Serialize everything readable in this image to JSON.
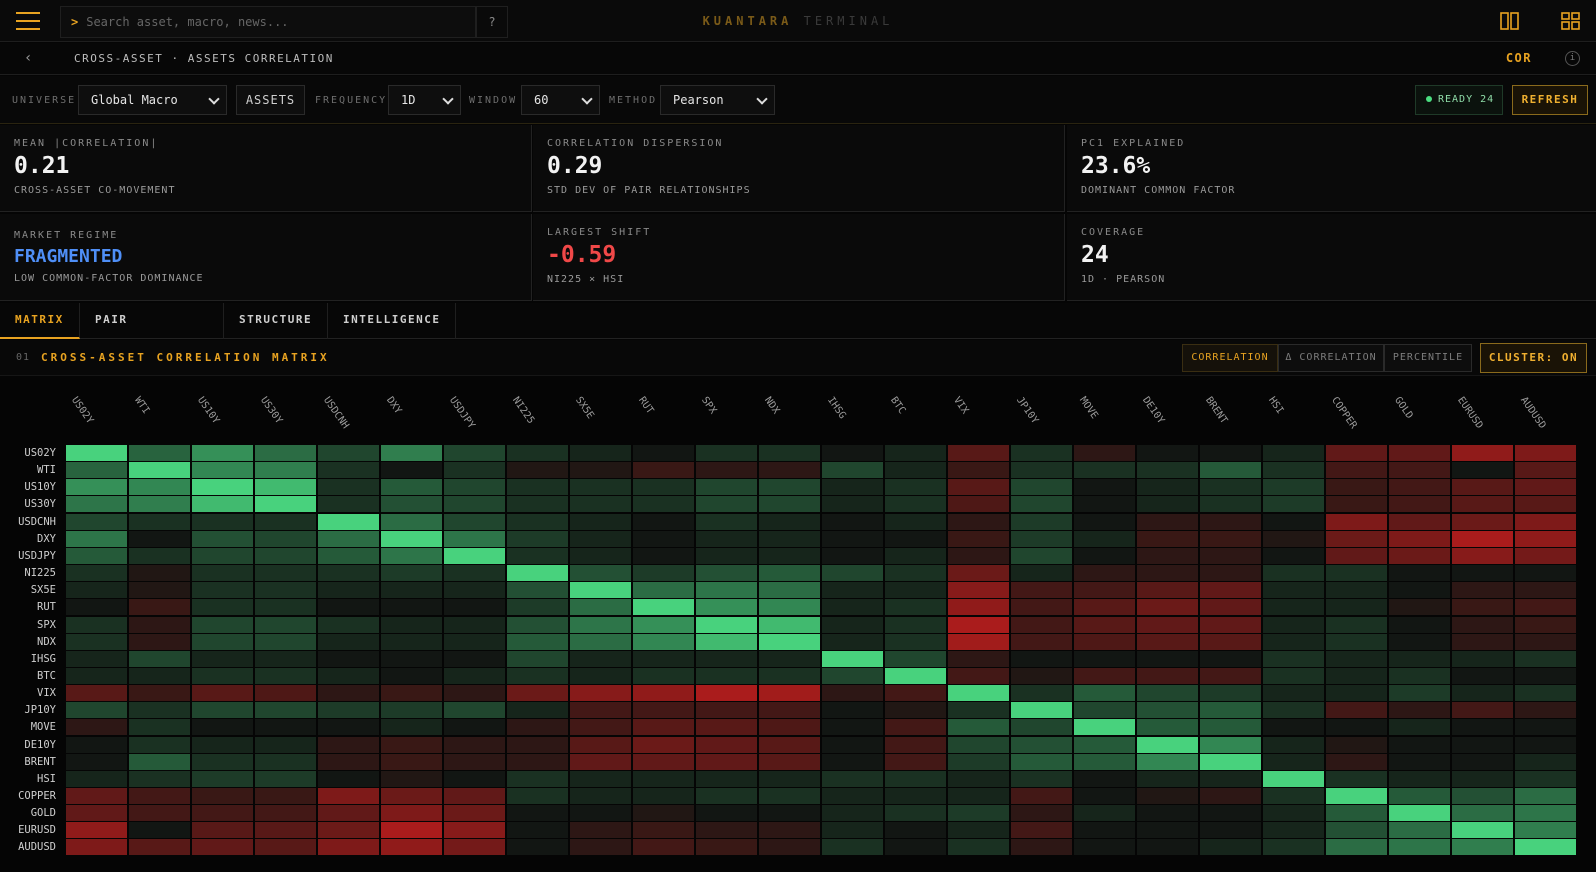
{
  "app": {
    "brand_main": "KUANTARA",
    "brand_sub": "TERMINAL",
    "search_placeholder": "Search asset, macro, news...",
    "search_prompt": ">",
    "help": "?"
  },
  "subbar": {
    "back": "‹",
    "breadcrumb": "CROSS-ASSET · ASSETS CORRELATION",
    "code": "COR",
    "info": "i"
  },
  "controls": {
    "universe_label": "UNIVERSE",
    "universe_value": "Global Macro",
    "assets_button": "ASSETS",
    "frequency_label": "FREQUENCY",
    "frequency_value": "1D",
    "window_label": "WINDOW",
    "window_value": "60",
    "method_label": "METHOD",
    "method_value": "Pearson",
    "ready": "READY 24",
    "refresh": "REFRESH"
  },
  "stats": [
    {
      "key": "MEAN |CORRELATION|",
      "value": "0.21",
      "sub": "CROSS-ASSET CO-MOVEMENT",
      "color": "#f2f2f2"
    },
    {
      "key": "CORRELATION DISPERSION",
      "value": "0.29",
      "sub": "STD DEV OF PAIR RELATIONSHIPS",
      "color": "#f2f2f2"
    },
    {
      "key": "PC1 EXPLAINED",
      "value": "23.6%",
      "sub": "DOMINANT COMMON FACTOR",
      "color": "#f2f2f2"
    },
    {
      "key": "MARKET REGIME",
      "value": "FRAGMENTED",
      "sub": "LOW COMMON-FACTOR DOMINANCE",
      "color": "#4f8ff7"
    },
    {
      "key": "LARGEST SHIFT",
      "value": "-0.59",
      "sub": "NI225 × HSI",
      "color": "#f04848"
    },
    {
      "key": "COVERAGE",
      "value": "24",
      "sub": "1D · PEARSON",
      "color": "#f2f2f2"
    }
  ],
  "tabs": [
    "MATRIX",
    "PAIR ANALYTICS",
    "STRUCTURE",
    "INTELLIGENCE"
  ],
  "matrix_header": {
    "num": "01",
    "title": "CROSS-ASSET CORRELATION MATRIX",
    "modes": [
      "CORRELATION",
      "Δ CORRELATION",
      "PERCENTILE"
    ],
    "cluster": "CLUSTER: ON"
  },
  "colors": {
    "accent": "#e8a321",
    "positive": "#4ade80",
    "negative": "#d21e1e"
  },
  "chart_data": {
    "type": "heatmap",
    "assets": [
      "US02Y",
      "WTI",
      "US10Y",
      "US30Y",
      "USDCNH",
      "DXY",
      "USDJPY",
      "NI225",
      "SX5E",
      "RUT",
      "SPX",
      "NDX",
      "IHSG",
      "BTC",
      "VIX",
      "JP10Y",
      "MOVE",
      "DE10Y",
      "BRENT",
      "HSI",
      "COPPER",
      "GOLD",
      "EURUSD",
      "AUDUSD"
    ],
    "values": [
      [
        1.0,
        0.35,
        0.6,
        0.4,
        0.2,
        0.5,
        0.2,
        0.1,
        0.05,
        0.0,
        0.1,
        0.1,
        0.0,
        0.05,
        -0.3,
        0.1,
        -0.1,
        0.0,
        0.0,
        0.05,
        -0.35,
        -0.35,
        -0.6,
        -0.5
      ],
      [
        0.35,
        1.0,
        0.55,
        0.5,
        0.1,
        0.0,
        0.1,
        -0.05,
        -0.05,
        -0.15,
        -0.1,
        -0.1,
        0.2,
        0.05,
        -0.15,
        0.1,
        0.1,
        0.1,
        0.3,
        0.1,
        -0.2,
        -0.2,
        0.0,
        -0.3
      ],
      [
        0.6,
        0.55,
        1.0,
        0.85,
        0.1,
        0.3,
        0.2,
        0.1,
        0.1,
        0.1,
        0.2,
        0.2,
        0.05,
        0.1,
        -0.3,
        0.2,
        0.0,
        0.05,
        0.1,
        0.15,
        -0.15,
        -0.2,
        -0.3,
        -0.35
      ],
      [
        0.45,
        0.5,
        0.85,
        1.0,
        0.1,
        0.25,
        0.2,
        0.1,
        0.1,
        0.1,
        0.2,
        0.2,
        0.05,
        0.1,
        -0.25,
        0.2,
        0.0,
        0.05,
        0.1,
        0.15,
        -0.15,
        -0.2,
        -0.3,
        -0.3
      ],
      [
        0.2,
        0.1,
        0.1,
        0.1,
        1.0,
        0.4,
        0.2,
        0.1,
        0.05,
        0.0,
        0.1,
        0.05,
        0.0,
        0.05,
        -0.1,
        0.15,
        0.0,
        -0.1,
        -0.1,
        0.0,
        -0.5,
        -0.35,
        -0.4,
        -0.5
      ],
      [
        0.45,
        0.0,
        0.25,
        0.2,
        0.4,
        1.0,
        0.45,
        0.15,
        0.05,
        0.0,
        0.05,
        0.05,
        0.0,
        0.0,
        -0.15,
        0.15,
        0.05,
        -0.15,
        -0.15,
        -0.05,
        -0.4,
        -0.5,
        -0.75,
        -0.6
      ],
      [
        0.3,
        0.1,
        0.2,
        0.2,
        0.3,
        0.45,
        1.0,
        0.1,
        0.05,
        0.0,
        0.05,
        0.05,
        0.0,
        0.05,
        -0.1,
        0.2,
        0.0,
        -0.1,
        -0.1,
        0.0,
        -0.35,
        -0.4,
        -0.55,
        -0.45
      ],
      [
        0.1,
        -0.05,
        0.1,
        0.1,
        0.1,
        0.15,
        0.1,
        1.0,
        0.25,
        0.15,
        0.25,
        0.3,
        0.2,
        0.1,
        -0.4,
        0.05,
        -0.1,
        -0.1,
        -0.1,
        0.1,
        0.1,
        0.0,
        0.0,
        0.0
      ],
      [
        0.05,
        -0.05,
        0.1,
        0.1,
        0.05,
        0.05,
        0.05,
        0.25,
        1.0,
        0.4,
        0.45,
        0.4,
        0.05,
        0.05,
        -0.55,
        -0.2,
        -0.2,
        -0.3,
        -0.35,
        0.05,
        0.05,
        0.0,
        -0.1,
        -0.1
      ],
      [
        0.0,
        -0.15,
        0.1,
        0.1,
        0.0,
        0.0,
        0.0,
        0.15,
        0.4,
        1.0,
        0.6,
        0.55,
        0.05,
        0.1,
        -0.6,
        -0.2,
        -0.3,
        -0.4,
        -0.35,
        0.05,
        0.05,
        -0.05,
        -0.15,
        -0.2
      ],
      [
        0.1,
        -0.1,
        0.2,
        0.2,
        0.1,
        0.05,
        0.05,
        0.25,
        0.45,
        0.6,
        1.0,
        0.85,
        0.05,
        0.1,
        -0.75,
        -0.2,
        -0.3,
        -0.35,
        -0.35,
        0.05,
        0.1,
        0.0,
        -0.1,
        -0.15
      ],
      [
        0.1,
        -0.1,
        0.2,
        0.2,
        0.05,
        0.05,
        0.05,
        0.3,
        0.4,
        0.55,
        0.85,
        1.0,
        0.05,
        0.1,
        -0.7,
        -0.2,
        -0.25,
        -0.3,
        -0.3,
        0.05,
        0.1,
        0.0,
        -0.1,
        -0.1
      ],
      [
        0.05,
        0.2,
        0.05,
        0.05,
        0.0,
        0.0,
        0.0,
        0.2,
        0.05,
        0.05,
        0.05,
        0.05,
        1.0,
        0.2,
        -0.1,
        0.0,
        0.0,
        0.0,
        0.0,
        0.1,
        0.05,
        0.05,
        0.05,
        0.1
      ],
      [
        0.05,
        0.05,
        0.1,
        0.1,
        0.05,
        0.0,
        0.05,
        0.1,
        0.05,
        0.1,
        0.1,
        0.1,
        0.2,
        1.0,
        -0.2,
        -0.05,
        -0.2,
        -0.2,
        -0.2,
        0.1,
        0.05,
        0.1,
        0.0,
        0.0
      ],
      [
        -0.3,
        -0.15,
        -0.3,
        -0.25,
        -0.1,
        -0.15,
        -0.1,
        -0.4,
        -0.55,
        -0.6,
        -0.75,
        -0.7,
        -0.1,
        -0.2,
        1.0,
        0.1,
        0.3,
        0.2,
        0.15,
        0.05,
        0.05,
        0.15,
        0.05,
        0.1
      ],
      [
        0.2,
        0.1,
        0.2,
        0.2,
        0.15,
        0.15,
        0.2,
        0.05,
        -0.2,
        -0.2,
        -0.2,
        -0.2,
        0.0,
        -0.05,
        0.1,
        1.0,
        0.2,
        0.25,
        0.3,
        0.1,
        -0.2,
        -0.1,
        -0.2,
        -0.1
      ],
      [
        -0.1,
        0.1,
        0.0,
        0.0,
        0.0,
        0.05,
        0.0,
        -0.1,
        -0.2,
        -0.3,
        -0.3,
        -0.25,
        0.0,
        -0.2,
        0.3,
        0.2,
        1.0,
        0.3,
        0.3,
        0.0,
        0.0,
        0.05,
        0.0,
        0.0
      ],
      [
        0.0,
        0.1,
        0.05,
        0.05,
        -0.1,
        -0.15,
        -0.1,
        -0.1,
        -0.3,
        -0.4,
        -0.35,
        -0.3,
        0.0,
        -0.2,
        0.2,
        0.25,
        0.3,
        1.0,
        0.55,
        0.05,
        -0.05,
        0.0,
        0.0,
        0.0
      ],
      [
        0.0,
        0.3,
        0.1,
        0.1,
        -0.1,
        -0.15,
        -0.1,
        -0.1,
        -0.35,
        -0.35,
        -0.35,
        -0.3,
        0.0,
        -0.2,
        0.15,
        0.3,
        0.3,
        0.55,
        1.0,
        0.05,
        -0.1,
        0.0,
        0.0,
        0.05
      ],
      [
        0.05,
        0.1,
        0.15,
        0.15,
        0.0,
        -0.05,
        0.0,
        0.1,
        0.05,
        0.05,
        0.05,
        0.05,
        0.1,
        0.1,
        0.05,
        0.1,
        0.0,
        0.05,
        0.05,
        1.0,
        0.1,
        0.05,
        0.05,
        0.1
      ],
      [
        -0.35,
        -0.2,
        -0.15,
        -0.15,
        -0.5,
        -0.4,
        -0.35,
        0.1,
        0.05,
        0.05,
        0.1,
        0.1,
        0.05,
        0.05,
        0.05,
        -0.2,
        0.0,
        -0.05,
        -0.1,
        0.1,
        1.0,
        0.3,
        0.25,
        0.4
      ],
      [
        -0.35,
        -0.2,
        -0.2,
        -0.2,
        -0.35,
        -0.5,
        -0.4,
        0.0,
        0.0,
        -0.05,
        0.0,
        0.0,
        0.05,
        0.1,
        0.15,
        -0.1,
        0.05,
        0.0,
        0.0,
        0.05,
        0.3,
        1.0,
        0.4,
        0.45
      ],
      [
        -0.6,
        0.0,
        -0.3,
        -0.3,
        -0.4,
        -0.75,
        -0.55,
        0.0,
        -0.1,
        -0.15,
        -0.1,
        -0.1,
        0.05,
        0.0,
        0.05,
        -0.2,
        0.0,
        0.0,
        0.0,
        0.05,
        0.25,
        0.4,
        1.0,
        0.5
      ],
      [
        -0.5,
        -0.3,
        -0.35,
        -0.3,
        -0.5,
        -0.6,
        -0.45,
        0.0,
        -0.1,
        -0.2,
        -0.15,
        -0.1,
        0.1,
        0.0,
        0.1,
        -0.1,
        0.0,
        0.0,
        0.05,
        0.1,
        0.4,
        0.45,
        0.5,
        1.0
      ]
    ]
  }
}
